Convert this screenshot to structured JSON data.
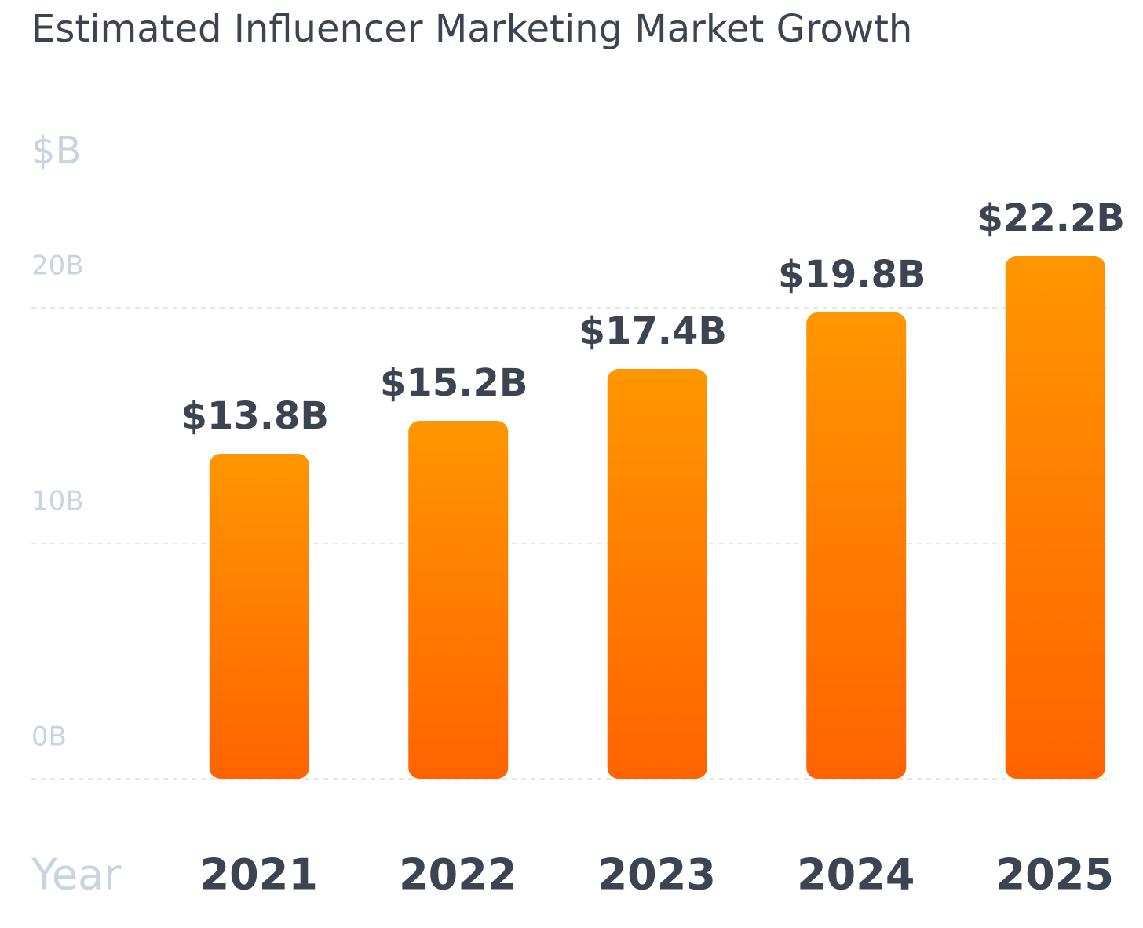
{
  "chart_data": {
    "type": "bar",
    "title": "Estimated Influencer Marketing Market Growth",
    "y_label": "$B",
    "x_label": "Year",
    "categories": [
      "2021",
      "2022",
      "2023",
      "2024",
      "2025"
    ],
    "values": [
      13.8,
      15.2,
      17.4,
      19.8,
      22.2
    ],
    "value_labels": [
      "$13.8B",
      "$15.2B",
      "$17.4B",
      "$19.8B",
      "$22.2B"
    ],
    "gradient": [
      "#ff9600",
      "#ff6300"
    ],
    "ylim": [
      0,
      25
    ],
    "yticks": [
      {
        "value": 0,
        "label": "0B"
      },
      {
        "value": 10,
        "label": "10B"
      },
      {
        "value": 20,
        "label": "20B"
      }
    ],
    "grid": true
  }
}
